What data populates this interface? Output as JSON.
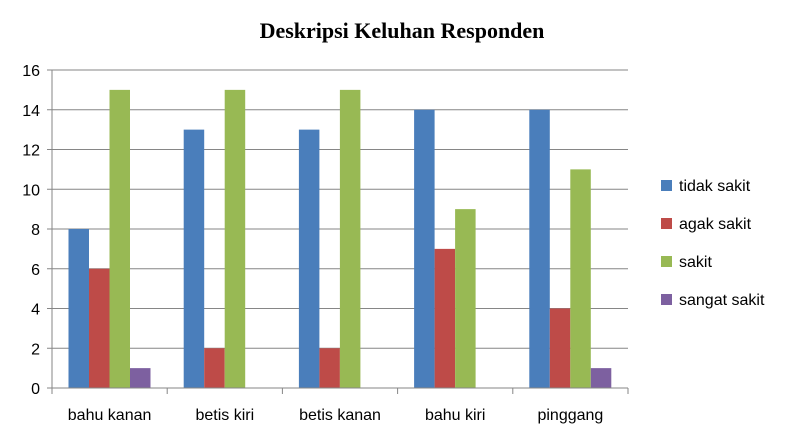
{
  "chart_data": {
    "type": "bar",
    "title": "Deskripsi Keluhan Responden",
    "xlabel": "",
    "ylabel": "",
    "categories": [
      "bahu kanan",
      "betis kiri",
      "betis kanan",
      "bahu kiri",
      "pinggang"
    ],
    "series": [
      {
        "name": "tidak sakit",
        "color": "#4A7EBB",
        "values": [
          8,
          13,
          13,
          14,
          14
        ]
      },
      {
        "name": "agak sakit",
        "color": "#BE4B48",
        "values": [
          6,
          2,
          2,
          7,
          4
        ]
      },
      {
        "name": "sakit",
        "color": "#98B954",
        "values": [
          15,
          15,
          15,
          9,
          11
        ]
      },
      {
        "name": "sangat sakit",
        "color": "#7D60A0",
        "values": [
          1,
          0,
          0,
          0,
          1
        ]
      }
    ],
    "ylim": [
      0,
      16
    ],
    "yticks": [
      0,
      2,
      4,
      6,
      8,
      10,
      12,
      14,
      16
    ],
    "grid": true,
    "legend": "right"
  }
}
